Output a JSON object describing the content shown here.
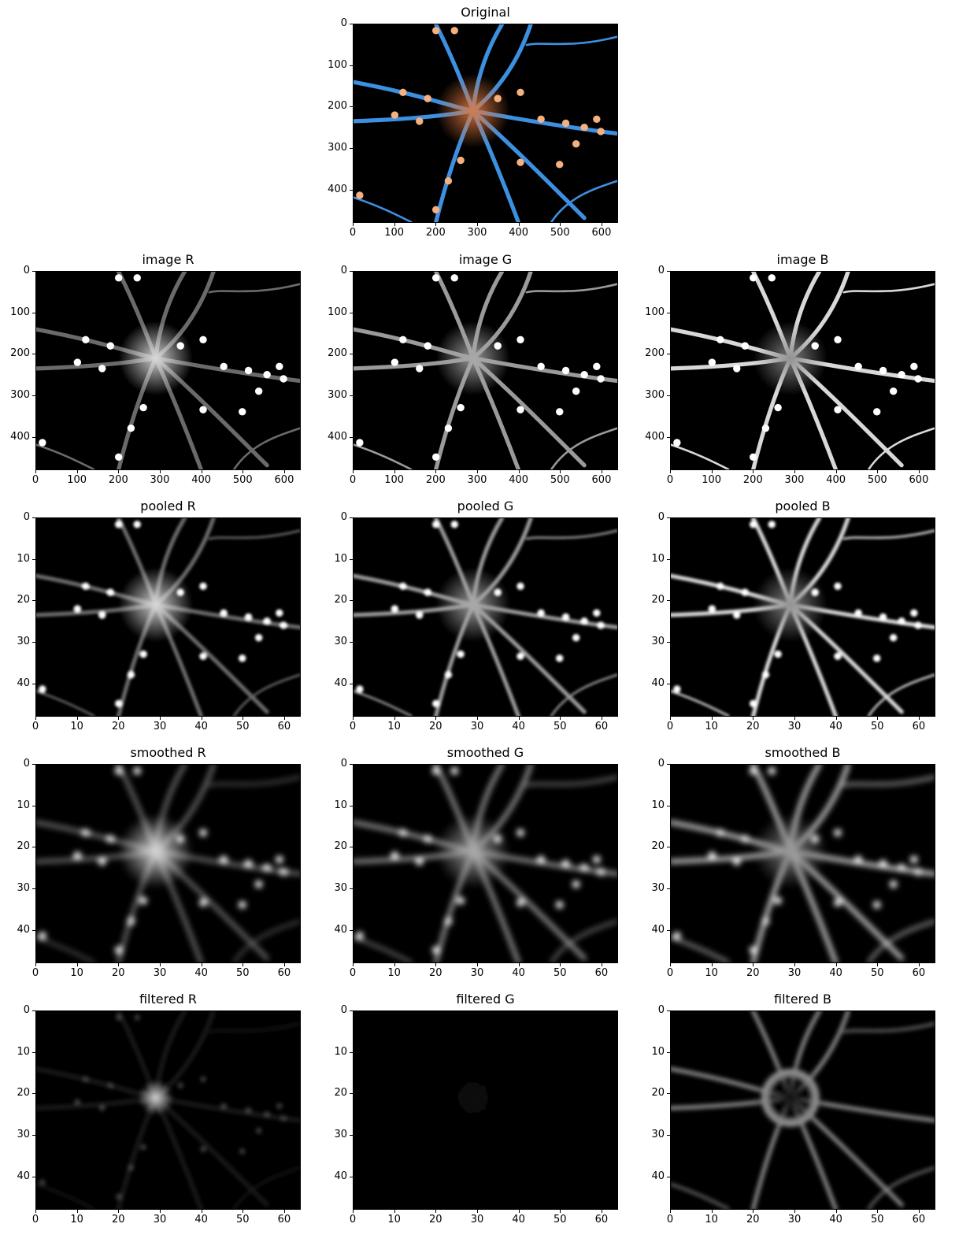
{
  "figure": {
    "panels": [
      {
        "id": "original",
        "title": "Original",
        "kind": "color",
        "xticks": [
          "0",
          "100",
          "200",
          "300",
          "400",
          "500",
          "600"
        ],
        "yticks": [
          "0",
          "100",
          "200",
          "300",
          "400"
        ]
      },
      {
        "id": "image-r",
        "title": "image R",
        "kind": "gray-r",
        "xticks": [
          "0",
          "100",
          "200",
          "300",
          "400",
          "500",
          "600"
        ],
        "yticks": [
          "0",
          "100",
          "200",
          "300",
          "400"
        ]
      },
      {
        "id": "image-g",
        "title": "image G",
        "kind": "gray-g",
        "xticks": [
          "0",
          "100",
          "200",
          "300",
          "400",
          "500",
          "600"
        ],
        "yticks": [
          "0",
          "100",
          "200",
          "300",
          "400"
        ]
      },
      {
        "id": "image-b",
        "title": "image B",
        "kind": "gray-b",
        "xticks": [
          "0",
          "100",
          "200",
          "300",
          "400",
          "500",
          "600"
        ],
        "yticks": [
          "0",
          "100",
          "200",
          "300",
          "400"
        ]
      },
      {
        "id": "pooled-r",
        "title": "pooled R",
        "kind": "gray-r",
        "xticks": [
          "0",
          "10",
          "20",
          "30",
          "40",
          "50",
          "60"
        ],
        "yticks": [
          "0",
          "10",
          "20",
          "30",
          "40"
        ]
      },
      {
        "id": "pooled-g",
        "title": "pooled G",
        "kind": "gray-g",
        "xticks": [
          "0",
          "10",
          "20",
          "30",
          "40",
          "50",
          "60"
        ],
        "yticks": [
          "0",
          "10",
          "20",
          "30",
          "40"
        ]
      },
      {
        "id": "pooled-b",
        "title": "pooled B",
        "kind": "gray-b",
        "xticks": [
          "0",
          "10",
          "20",
          "30",
          "40",
          "50",
          "60"
        ],
        "yticks": [
          "0",
          "10",
          "20",
          "30",
          "40"
        ]
      },
      {
        "id": "smoothed-r",
        "title": "smoothed R",
        "kind": "gray-r",
        "xticks": [
          "0",
          "10",
          "20",
          "30",
          "40",
          "50",
          "60"
        ],
        "yticks": [
          "0",
          "10",
          "20",
          "30",
          "40"
        ]
      },
      {
        "id": "smoothed-g",
        "title": "smoothed G",
        "kind": "gray-g",
        "xticks": [
          "0",
          "10",
          "20",
          "30",
          "40",
          "50",
          "60"
        ],
        "yticks": [
          "0",
          "10",
          "20",
          "30",
          "40"
        ]
      },
      {
        "id": "smoothed-b",
        "title": "smoothed B",
        "kind": "gray-b",
        "xticks": [
          "0",
          "10",
          "20",
          "30",
          "40",
          "50",
          "60"
        ],
        "yticks": [
          "0",
          "10",
          "20",
          "30",
          "40"
        ]
      },
      {
        "id": "filtered-r",
        "title": "filtered R",
        "kind": "filt-r",
        "xticks": [
          "0",
          "10",
          "20",
          "30",
          "40",
          "50",
          "60"
        ],
        "yticks": [
          "0",
          "10",
          "20",
          "30",
          "40"
        ]
      },
      {
        "id": "filtered-g",
        "title": "filtered G",
        "kind": "filt-g",
        "xticks": [
          "0",
          "10",
          "20",
          "30",
          "40",
          "50",
          "60"
        ],
        "yticks": [
          "0",
          "10",
          "20",
          "30",
          "40"
        ]
      },
      {
        "id": "filtered-b",
        "title": "filtered B",
        "kind": "filt-b",
        "xticks": [
          "0",
          "10",
          "20",
          "30",
          "40",
          "50",
          "60"
        ],
        "yticks": [
          "0",
          "10",
          "20",
          "30",
          "40"
        ]
      }
    ]
  },
  "colors": {
    "neuron_blue": "#4aa0f0",
    "soma_orange": "#e8864a",
    "background": "#000000"
  }
}
